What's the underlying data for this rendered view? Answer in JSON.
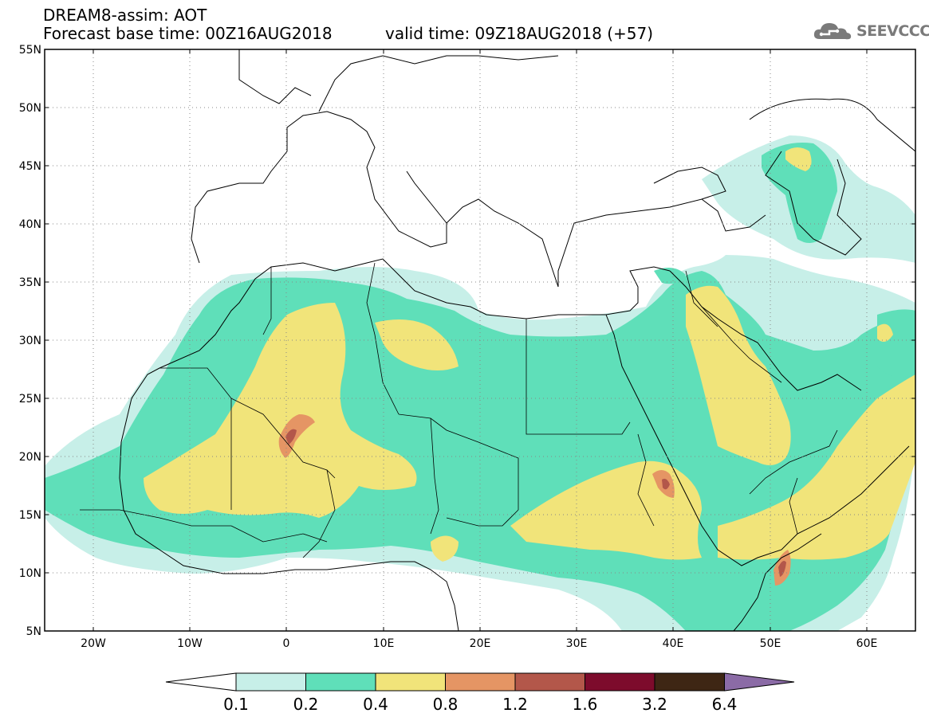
{
  "header": {
    "title_line1": "DREAM8-assim: AOT",
    "base_time": "Forecast base time: 00Z16AUG2018",
    "valid_time": "valid time: 09Z18AUG2018 (+57)",
    "logo": "SEEVCCC"
  },
  "map": {
    "lat_labels": [
      "55N",
      "50N",
      "45N",
      "40N",
      "35N",
      "30N",
      "25N",
      "20N",
      "15N",
      "10N",
      "5N"
    ],
    "lon_labels": [
      "20W",
      "10W",
      "0",
      "10E",
      "20E",
      "30E",
      "40E",
      "50E",
      "60E"
    ],
    "colors": {
      "c01": "#c7efe8",
      "c02": "#5fdfb9",
      "c04": "#f1e47a",
      "c08": "#e59564",
      "c12": "#b3574a",
      "c16": "#7d0b2c",
      "c32": "#3e2614",
      "c64": "#8b6ba6"
    }
  },
  "colorbar": {
    "labels": [
      "0.1",
      "0.2",
      "0.4",
      "0.8",
      "1.2",
      "1.6",
      "3.2",
      "6.4"
    ],
    "colors": [
      "#c7efe8",
      "#5fdfb9",
      "#f1e47a",
      "#e59564",
      "#b3574a",
      "#7d0b2c",
      "#3e2614"
    ],
    "over_color": "#8b6ba6",
    "under_color": "#ffffff"
  }
}
